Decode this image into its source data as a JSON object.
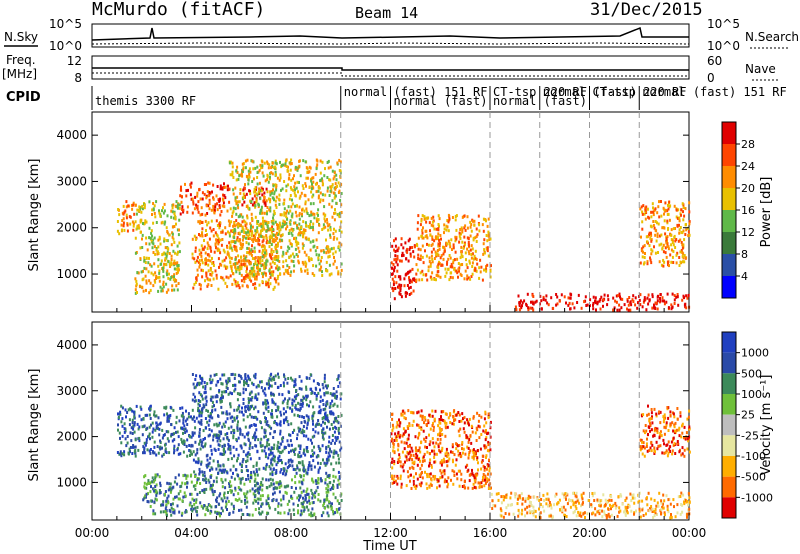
{
  "header": {
    "site": "McMurdo (fitACF)",
    "beam": "Beam 14",
    "date": "31/Dec/2015"
  },
  "small_panels": {
    "nsky_label": "N.Sky",
    "nsearch_label": "N.Search",
    "noise_ticks": [
      "10^5",
      "10^0"
    ],
    "freq_label_1": "Freq.",
    "freq_label_2": "[MHz]",
    "freq_ticks": [
      "12",
      "8"
    ],
    "nave_label": "Nave",
    "nave_ticks": [
      "60",
      "0"
    ]
  },
  "cpid": {
    "label": "CPID",
    "segments": [
      {
        "start_h": 0.0,
        "text": "themis 3300 RF"
      },
      {
        "start_h": 10.0,
        "text": "normal"
      },
      {
        "start_h": 12.0,
        "text": "(fast) 151 RF"
      },
      {
        "start_h": 16.0,
        "text": "CT-tsp 220 RF"
      },
      {
        "start_h": 18.0,
        "text": "normal (fast)"
      },
      {
        "start_h": 20.0,
        "text": "CT-tsp 220 RF"
      },
      {
        "start_h": 22.0,
        "text": "normal (fast) 151 RF"
      }
    ],
    "row2": [
      {
        "start_h": 12.0,
        "text": "normal (fast)"
      },
      {
        "start_h": 16.0,
        "text": "normal (fast)"
      }
    ]
  },
  "axes": {
    "ylabel": "Slant Range [km]",
    "xlabel": "Time UT",
    "xticks": [
      "00:00",
      "04:00",
      "08:00",
      "12:00",
      "16:00",
      "20:00",
      "00:00"
    ],
    "yticks": [
      "1000",
      "2000",
      "3000",
      "4000"
    ]
  },
  "colorbars": {
    "power": {
      "label": "Power [dB]",
      "ticks": [
        "28",
        "24",
        "20",
        "16",
        "12",
        "8",
        "4"
      ]
    },
    "velocity": {
      "label": "Velocity [m s⁻¹]",
      "ticks": [
        "1000",
        "500",
        "100",
        "25",
        "-25",
        "-100",
        "-500",
        "-1000"
      ]
    }
  },
  "chart_data": {
    "type": "heatmap",
    "title": "McMurdo (fitACF) Beam 14 31/Dec/2015",
    "xlabel": "Time UT",
    "ylabel": "Slant Range [km]",
    "x_range_hours": [
      0,
      24
    ],
    "y_range_km": [
      180,
      4500
    ],
    "panels": [
      {
        "name": "Power [dB]",
        "colorbar_ticks": [
          4,
          8,
          12,
          16,
          20,
          24,
          28
        ],
        "colors": [
          "#0000ff",
          "#2a4fa6",
          "#3a7a3a",
          "#5fb848",
          "#e8c000",
          "#ff8c00",
          "#ff4500",
          "#e00000"
        ],
        "echo_regions": [
          {
            "t": [
              1.0,
              1.7
            ],
            "km": [
              1900,
              2600
            ],
            "level": 5
          },
          {
            "t": [
              1.7,
              3.5
            ],
            "km": [
              600,
              2600
            ],
            "level": 4
          },
          {
            "t": [
              3.5,
              5.5
            ],
            "km": [
              2300,
              3000
            ],
            "level": 6
          },
          {
            "t": [
              4.0,
              7.5
            ],
            "km": [
              700,
              2200
            ],
            "level": 5
          },
          {
            "t": [
              6.0,
              7.0
            ],
            "km": [
              2500,
              2900
            ],
            "level": 7
          },
          {
            "t": [
              5.5,
              10.0
            ],
            "km": [
              1000,
              3500
            ],
            "level": 4
          },
          {
            "t": [
              12.0,
              13.0
            ],
            "km": [
              500,
              1800
            ],
            "level": 7
          },
          {
            "t": [
              13.0,
              16.0
            ],
            "km": [
              900,
              2300
            ],
            "level": 5
          },
          {
            "t": [
              17.0,
              24.0
            ],
            "km": [
              250,
              600
            ],
            "level": 7
          },
          {
            "t": [
              22.0,
              24.0
            ],
            "km": [
              1200,
              2600
            ],
            "level": 5
          }
        ]
      },
      {
        "name": "Velocity [m s⁻¹]",
        "colorbar_ticks": [
          -1000,
          -500,
          -100,
          -25,
          25,
          100,
          500,
          1000
        ],
        "colors": [
          "#e00000",
          "#ff6a00",
          "#ffae00",
          "#e6e6a0",
          "#bebebe",
          "#6fc03a",
          "#3c8a5a",
          "#2a4aa8",
          "#2040c0"
        ],
        "echo_regions": [
          {
            "t": [
              1.0,
              4.0
            ],
            "km": [
              1600,
              2700
            ],
            "level": 7
          },
          {
            "t": [
              2.0,
              10.0
            ],
            "km": [
              300,
              1200
            ],
            "level": 6
          },
          {
            "t": [
              4.0,
              10.0
            ],
            "km": [
              1200,
              3400
            ],
            "level": 7
          },
          {
            "t": [
              12.0,
              16.0
            ],
            "km": [
              900,
              2600
            ],
            "level": 1
          },
          {
            "t": [
              16.0,
              24.0
            ],
            "km": [
              250,
              800
            ],
            "level": 2
          },
          {
            "t": [
              22.0,
              24.0
            ],
            "km": [
              1600,
              2700
            ],
            "level": 1
          }
        ]
      }
    ]
  }
}
